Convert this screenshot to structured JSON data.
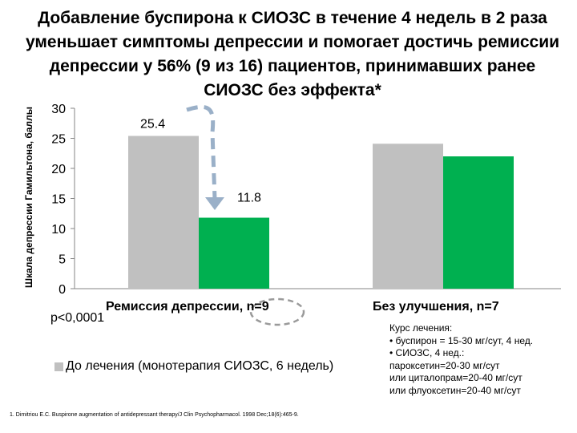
{
  "title": "Добавление буспирона к СИОЗС в течение 4 недель в 2 раза уменьшает симптомы депрессии и помогает достичь ремиссии депрессии у 56% (9 из 16) пациентов, принимавших ранее СИОЗС без эффекта*",
  "chart_data": {
    "type": "bar",
    "ylabel": "Шкала депрессии Гамильтона, баллы",
    "ylim": [
      0,
      30
    ],
    "yticks": [
      0,
      5,
      10,
      15,
      20,
      25,
      30
    ],
    "grid": false,
    "categories": [
      "Ремиссия депрессии, n=9",
      "Без улучшения, n=7"
    ],
    "series": [
      {
        "name": "До лечения (монотерапия СИОЗС, 6 недель)",
        "color": "#c0c0c0",
        "values": [
          25.4,
          24.1
        ],
        "labels": [
          "25.4",
          ""
        ]
      },
      {
        "name": "",
        "color": "#00b050",
        "values": [
          11.8,
          22.0
        ],
        "labels": [
          "11.8",
          ""
        ]
      }
    ],
    "annotations": {
      "arrow": "dashed-curved-arrow-from-25.4-to-11.8",
      "circle": "dashed-ellipse-around-n=9"
    }
  },
  "pvalue": "p<0,0001",
  "legend_label": "До лечения (монотерапия СИОЗС, 6 недель)",
  "notes": {
    "heading": "Курс лечения:",
    "line1": "•   буспирон = 15-30 мг/сут, 4 нед.",
    "line2": "•   СИОЗС, 4 нед.:",
    "line3": "пароксетин=20-30 мг/сут",
    "line4": "или циталопрам=20-40 мг/сут",
    "line5": "или флуоксетин=20-40 мг/сут"
  },
  "reference": "1. Dimitriou E.C. Buspirone augmentation of antidepressant therapy/J Clin Psychopharmacol. 1998 Dec;18(6):465-9."
}
